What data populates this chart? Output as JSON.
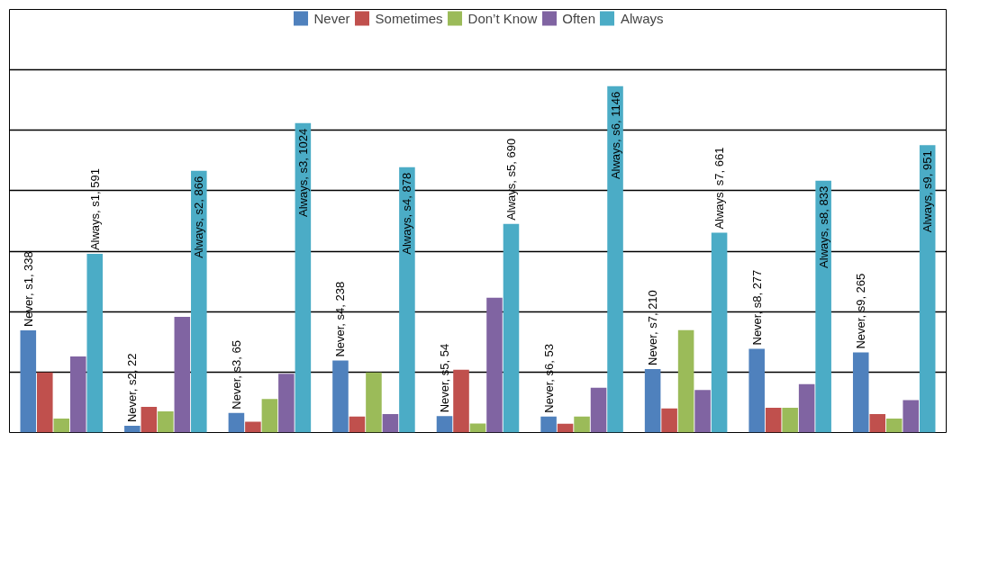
{
  "chart_data": {
    "type": "bar",
    "categories": [
      null,
      null,
      null,
      null,
      null,
      null,
      null,
      null,
      null
    ],
    "ylim": [
      0,
      1400
    ],
    "yticks": [
      {
        "value": 0,
        "label": null
      },
      {
        "value": 200,
        "label": null
      },
      {
        "value": 400,
        "label": null
      },
      {
        "value": 600,
        "label": null
      },
      {
        "value": 800,
        "label": null
      },
      {
        "value": 1000,
        "label": null
      },
      {
        "value": 1200,
        "label": null
      },
      {
        "value": 1400,
        "label": null
      }
    ],
    "grid": "y",
    "legend": "top",
    "series": [
      {
        "name": "Never",
        "color": "#4f81bd",
        "values": [
          338,
          22,
          65,
          238,
          54,
          53,
          210,
          277,
          265
        ],
        "value_labels": [
          "Never, s1, 338",
          "Never, s2, 22",
          "Never, s3, 65",
          "Never, s4, 238",
          "Never, s5, 54",
          "Never, s6, 53",
          "Never, s7, 210",
          "Never, s8, 277",
          "Never, s9, 265"
        ]
      },
      {
        "name": "Sometimes",
        "color": "#c0504d",
        "values": [
          199,
          85,
          36,
          53,
          208,
          29,
          80,
          82,
          61
        ]
      },
      {
        "name": "Don’t Know",
        "color": "#9bbb59",
        "values": [
          46,
          70,
          111,
          199,
          30,
          53,
          339,
          82,
          46
        ]
      },
      {
        "name": "Often",
        "color": "#8064a2",
        "values": [
          252,
          383,
          194,
          61,
          446,
          148,
          141,
          160,
          107
        ]
      },
      {
        "name": "Always",
        "color": "#4bacc6",
        "values": [
          591,
          866,
          1024,
          878,
          690,
          1146,
          661,
          833,
          951
        ],
        "value_labels": [
          "Always, s1, 591",
          "Always, s2, 866",
          "Always, s3, 1024",
          "Always, s4, 878",
          "Always, s5, 690",
          "Always, s6, 1146",
          "Always, s7, 661",
          "Always, s8, 833",
          "Always, s9, 951"
        ]
      }
    ]
  }
}
